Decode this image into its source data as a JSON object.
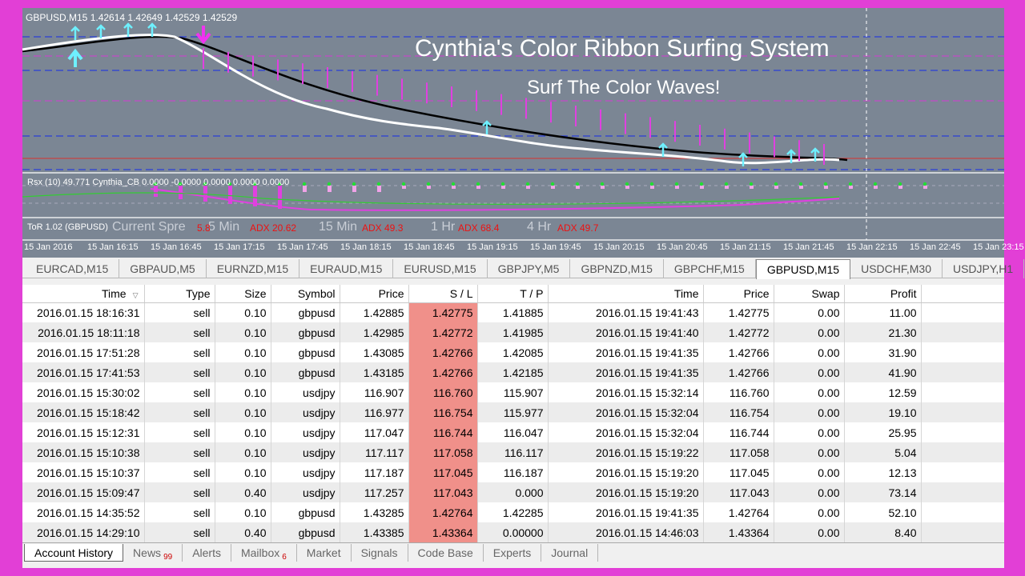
{
  "chart": {
    "ohlc_label": "GBPUSD,M15  1.42614 1.42649 1.42529 1.42529",
    "headline": "Cynthia's Color Ribbon Surfing System",
    "subline": "Surf The Color Waves!",
    "rsx_label": "Rsx (10) 49.771    Cynthia_CB 0.0000 -0.0000 0.0000 0.0000 0.0000",
    "tor_label": "ToR 1.02 (GBPUSD)",
    "overlay_gray": [
      "Current Spre",
      "5 Min",
      "15 Min",
      "1 Hr",
      "4 Hr"
    ],
    "overlay_red": [
      "5.8",
      "ADX 20.62",
      "ADX 49.3",
      "ADX 68.4",
      "ADX 49.7"
    ],
    "time_ticks": [
      "15 Jan 2016",
      "15 Jan 16:15",
      "15 Jan 16:45",
      "15 Jan 17:15",
      "15 Jan 17:45",
      "15 Jan 18:15",
      "15 Jan 18:45",
      "15 Jan 19:15",
      "15 Jan 19:45",
      "15 Jan 20:15",
      "15 Jan 20:45",
      "15 Jan 21:15",
      "15 Jan 21:45",
      "15 Jan 22:15",
      "15 Jan 22:45",
      "15 Jan 23:15"
    ],
    "colors": {
      "background": "#7b8694",
      "blue_level": "#2a3fd8",
      "magenta_level": "#d63ad3",
      "red_level": "#d8332e",
      "price": "#ffffff",
      "ribbon": "#000000"
    }
  },
  "symbol_tabs": [
    "EURCAD,M15",
    "GBPAUD,M5",
    "EURNZD,M15",
    "EURAUD,M15",
    "EURUSD,M15",
    "GBPJPY,M5",
    "GBPNZD,M15",
    "GBPCHF,M15",
    "GBPUSD,M15",
    "USDCHF,M30",
    "USDJPY,H1"
  ],
  "active_symbol_tab": "GBPUSD,M15",
  "table": {
    "headers": [
      "Time",
      "Type",
      "Size",
      "Symbol",
      "Price",
      "S / L",
      "T / P",
      "Time",
      "Price",
      "Swap",
      "Profit"
    ],
    "sort_icon": "▽",
    "rows": [
      [
        "2016.01.15 18:16:31",
        "sell",
        "0.10",
        "gbpusd",
        "1.42885",
        "1.42775",
        "1.41885",
        "2016.01.15 19:41:43",
        "1.42775",
        "0.00",
        "11.00"
      ],
      [
        "2016.01.15 18:11:18",
        "sell",
        "0.10",
        "gbpusd",
        "1.42985",
        "1.42772",
        "1.41985",
        "2016.01.15 19:41:40",
        "1.42772",
        "0.00",
        "21.30"
      ],
      [
        "2016.01.15 17:51:28",
        "sell",
        "0.10",
        "gbpusd",
        "1.43085",
        "1.42766",
        "1.42085",
        "2016.01.15 19:41:35",
        "1.42766",
        "0.00",
        "31.90"
      ],
      [
        "2016.01.15 17:41:53",
        "sell",
        "0.10",
        "gbpusd",
        "1.43185",
        "1.42766",
        "1.42185",
        "2016.01.15 19:41:35",
        "1.42766",
        "0.00",
        "41.90"
      ],
      [
        "2016.01.15 15:30:02",
        "sell",
        "0.10",
        "usdjpy",
        "116.907",
        "116.760",
        "115.907",
        "2016.01.15 15:32:14",
        "116.760",
        "0.00",
        "12.59"
      ],
      [
        "2016.01.15 15:18:42",
        "sell",
        "0.10",
        "usdjpy",
        "116.977",
        "116.754",
        "115.977",
        "2016.01.15 15:32:04",
        "116.754",
        "0.00",
        "19.10"
      ],
      [
        "2016.01.15 15:12:31",
        "sell",
        "0.10",
        "usdjpy",
        "117.047",
        "116.744",
        "116.047",
        "2016.01.15 15:32:04",
        "116.744",
        "0.00",
        "25.95"
      ],
      [
        "2016.01.15 15:10:38",
        "sell",
        "0.10",
        "usdjpy",
        "117.117",
        "117.058",
        "116.117",
        "2016.01.15 15:19:22",
        "117.058",
        "0.00",
        "5.04"
      ],
      [
        "2016.01.15 15:10:37",
        "sell",
        "0.10",
        "usdjpy",
        "117.187",
        "117.045",
        "116.187",
        "2016.01.15 15:19:20",
        "117.045",
        "0.00",
        "12.13"
      ],
      [
        "2016.01.15 15:09:47",
        "sell",
        "0.40",
        "usdjpy",
        "117.257",
        "117.043",
        "0.000",
        "2016.01.15 15:19:20",
        "117.043",
        "0.00",
        "73.14"
      ],
      [
        "2016.01.15 14:35:52",
        "sell",
        "0.10",
        "gbpusd",
        "1.43285",
        "1.42764",
        "1.42285",
        "2016.01.15 19:41:35",
        "1.42764",
        "0.00",
        "52.10"
      ],
      [
        "2016.01.15 14:29:10",
        "sell",
        "0.40",
        "gbpusd",
        "1.43385",
        "1.43364",
        "0.00000",
        "2016.01.15 14:46:03",
        "1.43364",
        "0.00",
        "8.40"
      ]
    ]
  },
  "bottom_tabs": [
    {
      "label": "Account History",
      "active": true,
      "badge": ""
    },
    {
      "label": "News",
      "active": false,
      "badge": "99"
    },
    {
      "label": "Alerts",
      "active": false,
      "badge": ""
    },
    {
      "label": "Mailbox",
      "active": false,
      "badge": "6"
    },
    {
      "label": "Market",
      "active": false,
      "badge": ""
    },
    {
      "label": "Signals",
      "active": false,
      "badge": ""
    },
    {
      "label": "Code Base",
      "active": false,
      "badge": ""
    },
    {
      "label": "Experts",
      "active": false,
      "badge": ""
    },
    {
      "label": "Journal",
      "active": false,
      "badge": ""
    }
  ]
}
